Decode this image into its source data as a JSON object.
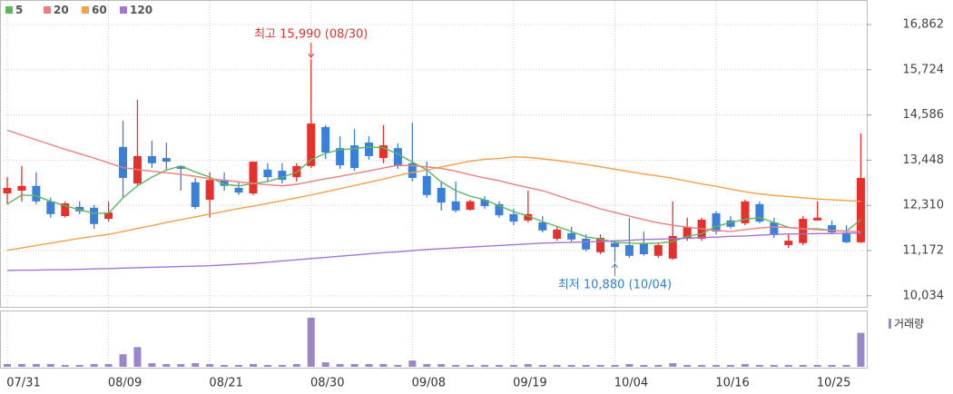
{
  "chart_data": [
    {
      "type": "candlestick",
      "categories": [
        "07/31",
        null,
        null,
        null,
        null,
        null,
        null,
        "08/09",
        null,
        null,
        null,
        null,
        null,
        null,
        "08/21",
        null,
        null,
        null,
        null,
        null,
        null,
        "08/30",
        null,
        null,
        null,
        null,
        null,
        null,
        "09/08",
        null,
        null,
        null,
        null,
        null,
        null,
        "09/19",
        null,
        null,
        null,
        null,
        null,
        null,
        "10/04",
        null,
        null,
        null,
        null,
        null,
        null,
        "10/16",
        null,
        null,
        null,
        null,
        null,
        null,
        "10/25",
        null,
        null,
        null
      ],
      "open": [
        12610,
        12680,
        12800,
        12410,
        12040,
        12270,
        12250,
        11970,
        13780,
        12860,
        13550,
        13500,
        13300,
        12890,
        12450,
        12950,
        12750,
        12610,
        13210,
        13180,
        13020,
        13300,
        14280,
        13750,
        13820,
        13890,
        13500,
        13750,
        13370,
        13050,
        12750,
        12410,
        12200,
        12450,
        12340,
        12090,
        11930,
        11880,
        11470,
        11610,
        11470,
        11130,
        11360,
        11310,
        11360,
        11040,
        10970,
        11470,
        11470,
        12110,
        11930,
        11860,
        12340,
        11880,
        11310,
        11360,
        11930,
        11810,
        11610,
        11380
      ],
      "high": [
        13020,
        13300,
        13140,
        12500,
        12410,
        12410,
        12320,
        12410,
        14440,
        14970,
        13940,
        13890,
        13320,
        13000,
        13140,
        13140,
        12910,
        13410,
        13370,
        13370,
        13370,
        15990,
        14330,
        14050,
        14230,
        14050,
        14330,
        13870,
        14390,
        13410,
        12910,
        12910,
        12450,
        12540,
        12410,
        12220,
        12680,
        12040,
        11770,
        11770,
        11580,
        11580,
        11400,
        12000,
        11650,
        11360,
        12410,
        12000,
        12000,
        12160,
        12040,
        12450,
        12410,
        12000,
        11580,
        12040,
        12410,
        11930,
        11810,
        14120
      ],
      "low": [
        12340,
        12410,
        12340,
        12000,
        12000,
        12090,
        11720,
        11900,
        12500,
        12800,
        13250,
        13180,
        12680,
        12220,
        12000,
        12680,
        12570,
        12570,
        12910,
        12860,
        12910,
        13250,
        13480,
        13230,
        13180,
        13460,
        13370,
        13230,
        12910,
        12500,
        12180,
        12130,
        12180,
        12220,
        12000,
        11810,
        11880,
        11630,
        11420,
        11400,
        11150,
        11080,
        10880,
        10990,
        11040,
        10990,
        10940,
        11420,
        11420,
        11580,
        11720,
        11810,
        11860,
        11490,
        11240,
        11310,
        11930,
        11580,
        11360,
        11360
      ],
      "close": [
        12750,
        12800,
        12410,
        12090,
        12360,
        12160,
        11840,
        12130,
        13000,
        13550,
        13370,
        13410,
        13230,
        12270,
        12950,
        12800,
        12630,
        13410,
        13020,
        12950,
        13300,
        14370,
        13640,
        13320,
        13250,
        13550,
        13820,
        13300,
        13000,
        12570,
        12380,
        12180,
        12410,
        12290,
        12060,
        11900,
        12090,
        11680,
        11700,
        11450,
        11200,
        11490,
        11260,
        11040,
        11080,
        11310,
        11540,
        11770,
        11950,
        11650,
        11770,
        12410,
        11900,
        11560,
        11420,
        11970,
        12000,
        11630,
        11380,
        13000
      ],
      "up_color": "#e5302c",
      "down_color": "#3a7fd8",
      "series": [
        {
          "name": "5",
          "color": "#5cb85c",
          "values": [
            12340,
            12570,
            12550,
            12410,
            12300,
            12200,
            12110,
            12110,
            12500,
            12800,
            13020,
            13200,
            13300,
            13150,
            13020,
            12840,
            12800,
            12860,
            12910,
            13020,
            13140,
            13460,
            13620,
            13710,
            13740,
            13780,
            13760,
            13600,
            13400,
            13200,
            12900,
            12680,
            12540,
            12450,
            12300,
            12150,
            12040,
            11900,
            11780,
            11650,
            11520,
            11460,
            11380,
            11360,
            11350,
            11360,
            11400,
            11530,
            11600,
            11780,
            11880,
            11960,
            12000,
            11880,
            11760,
            11720,
            11720,
            11680,
            11660,
            11950
          ]
        },
        {
          "name": "20",
          "color": "#ef7d7d",
          "values": [
            14200,
            14080,
            13960,
            13840,
            13720,
            13610,
            13500,
            13380,
            13260,
            13210,
            13170,
            13130,
            13090,
            13040,
            12980,
            12940,
            12900,
            12860,
            12830,
            12800,
            12840,
            12910,
            12980,
            13040,
            13110,
            13180,
            13250,
            13320,
            13310,
            13280,
            13240,
            13170,
            13080,
            13000,
            12930,
            12840,
            12760,
            12680,
            12560,
            12440,
            12340,
            12220,
            12130,
            12040,
            11950,
            11870,
            11810,
            11760,
            11720,
            11680,
            11650,
            11700,
            11740,
            11770,
            11750,
            11720,
            11700,
            11680,
            11660,
            11650
          ]
        },
        {
          "name": "60",
          "color": "#f5a04a",
          "values": [
            11180,
            11240,
            11300,
            11360,
            11420,
            11480,
            11530,
            11580,
            11650,
            11730,
            11800,
            11880,
            11950,
            12020,
            12090,
            12160,
            12230,
            12290,
            12360,
            12430,
            12500,
            12570,
            12650,
            12730,
            12810,
            12890,
            12970,
            13060,
            13140,
            13200,
            13280,
            13350,
            13420,
            13470,
            13490,
            13530,
            13520,
            13480,
            13440,
            13390,
            13340,
            13280,
            13220,
            13160,
            13100,
            13050,
            12990,
            12920,
            12850,
            12790,
            12720,
            12650,
            12600,
            12560,
            12530,
            12500,
            12470,
            12450,
            12430,
            12410
          ]
        },
        {
          "name": "120",
          "color": "#a373d6",
          "values": [
            10670,
            10680,
            10680,
            10690,
            10690,
            10700,
            10710,
            10720,
            10730,
            10740,
            10750,
            10760,
            10770,
            10780,
            10790,
            10810,
            10830,
            10850,
            10880,
            10910,
            10940,
            10970,
            11000,
            11030,
            11060,
            11090,
            11120,
            11140,
            11170,
            11200,
            11220,
            11240,
            11260,
            11280,
            11300,
            11320,
            11340,
            11360,
            11370,
            11380,
            11390,
            11400,
            11420,
            11430,
            11450,
            11460,
            11470,
            11480,
            11500,
            11510,
            11530,
            11540,
            11560,
            11580,
            11590,
            11590,
            11600,
            11600,
            11610,
            11610
          ]
        }
      ],
      "ylim": [
        9755,
        17365
      ],
      "yticks": [
        {
          "value": 16862,
          "label": "16,862"
        },
        {
          "value": 15724,
          "label": "15,724"
        },
        {
          "value": 14586,
          "label": "14,586"
        },
        {
          "value": 13448,
          "label": "13,448"
        },
        {
          "value": 12310,
          "label": "12,310"
        },
        {
          "value": 11172,
          "label": "11,172"
        },
        {
          "value": 10034,
          "label": "10,034"
        }
      ],
      "grid": true,
      "annotations": [
        {
          "text": "최고 15,990 (08/30)",
          "index": 21,
          "value": 15990,
          "color": "#e5302c",
          "side": "above"
        },
        {
          "text": "최저 10,880 (10/04)",
          "index": 42,
          "value": 10880,
          "color": "#2f7fd0",
          "side": "below"
        }
      ]
    },
    {
      "type": "bar",
      "name": "거래량",
      "color": "#9a86c9",
      "values": [
        3,
        3,
        3,
        3,
        2,
        2,
        3,
        3,
        14,
        22,
        4,
        3,
        3,
        4,
        3,
        2,
        2,
        3,
        2,
        2,
        3,
        55,
        5,
        3,
        3,
        3,
        3,
        2,
        7,
        3,
        3,
        2,
        2,
        2,
        2,
        2,
        3,
        2,
        2,
        2,
        2,
        2,
        2,
        3,
        2,
        2,
        4,
        2,
        2,
        2,
        2,
        3,
        2,
        2,
        2,
        2,
        2,
        2,
        2,
        38
      ],
      "ylim": [
        0,
        60
      ]
    }
  ]
}
